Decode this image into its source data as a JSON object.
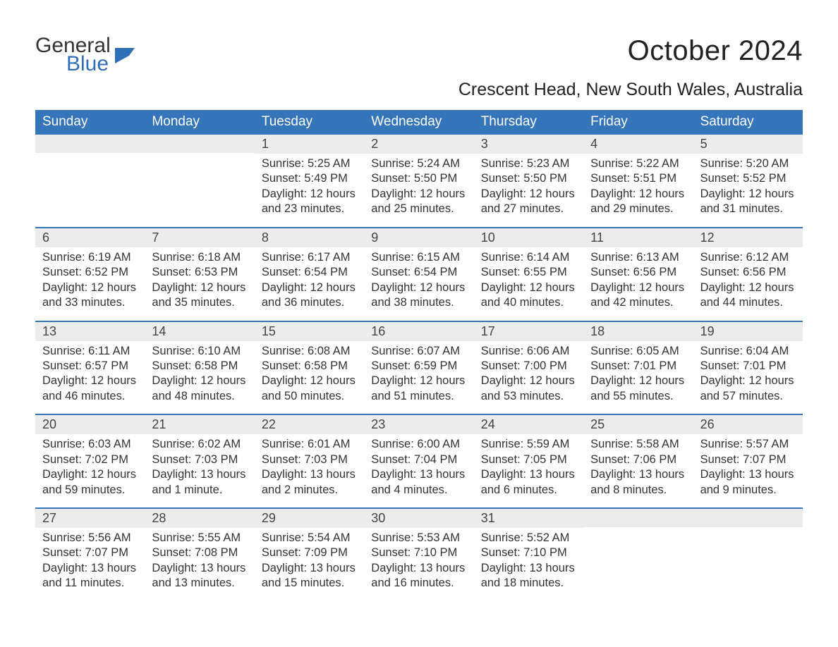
{
  "logo": {
    "word1": "General",
    "word2": "Blue",
    "accent_color": "#2e6fb7"
  },
  "title": "October 2024",
  "location": "Crescent Head, New South Wales, Australia",
  "colors": {
    "header_bg": "#3575b9",
    "header_text": "#ffffff",
    "daynum_bg": "#ececec",
    "rule": "#3575b9",
    "body_text": "#333333"
  },
  "fonts": {
    "title_size": 40,
    "location_size": 25,
    "dow_size": 19,
    "daynum_size": 18,
    "body_size": 16.5
  },
  "days_of_week": [
    "Sunday",
    "Monday",
    "Tuesday",
    "Wednesday",
    "Thursday",
    "Friday",
    "Saturday"
  ],
  "weeks": [
    [
      null,
      null,
      {
        "n": "1",
        "sunrise": "5:25 AM",
        "sunset": "5:49 PM",
        "daylight": "12 hours and 23 minutes."
      },
      {
        "n": "2",
        "sunrise": "5:24 AM",
        "sunset": "5:50 PM",
        "daylight": "12 hours and 25 minutes."
      },
      {
        "n": "3",
        "sunrise": "5:23 AM",
        "sunset": "5:50 PM",
        "daylight": "12 hours and 27 minutes."
      },
      {
        "n": "4",
        "sunrise": "5:22 AM",
        "sunset": "5:51 PM",
        "daylight": "12 hours and 29 minutes."
      },
      {
        "n": "5",
        "sunrise": "5:20 AM",
        "sunset": "5:52 PM",
        "daylight": "12 hours and 31 minutes."
      }
    ],
    [
      {
        "n": "6",
        "sunrise": "6:19 AM",
        "sunset": "6:52 PM",
        "daylight": "12 hours and 33 minutes."
      },
      {
        "n": "7",
        "sunrise": "6:18 AM",
        "sunset": "6:53 PM",
        "daylight": "12 hours and 35 minutes."
      },
      {
        "n": "8",
        "sunrise": "6:17 AM",
        "sunset": "6:54 PM",
        "daylight": "12 hours and 36 minutes."
      },
      {
        "n": "9",
        "sunrise": "6:15 AM",
        "sunset": "6:54 PM",
        "daylight": "12 hours and 38 minutes."
      },
      {
        "n": "10",
        "sunrise": "6:14 AM",
        "sunset": "6:55 PM",
        "daylight": "12 hours and 40 minutes."
      },
      {
        "n": "11",
        "sunrise": "6:13 AM",
        "sunset": "6:56 PM",
        "daylight": "12 hours and 42 minutes."
      },
      {
        "n": "12",
        "sunrise": "6:12 AM",
        "sunset": "6:56 PM",
        "daylight": "12 hours and 44 minutes."
      }
    ],
    [
      {
        "n": "13",
        "sunrise": "6:11 AM",
        "sunset": "6:57 PM",
        "daylight": "12 hours and 46 minutes."
      },
      {
        "n": "14",
        "sunrise": "6:10 AM",
        "sunset": "6:58 PM",
        "daylight": "12 hours and 48 minutes."
      },
      {
        "n": "15",
        "sunrise": "6:08 AM",
        "sunset": "6:58 PM",
        "daylight": "12 hours and 50 minutes."
      },
      {
        "n": "16",
        "sunrise": "6:07 AM",
        "sunset": "6:59 PM",
        "daylight": "12 hours and 51 minutes."
      },
      {
        "n": "17",
        "sunrise": "6:06 AM",
        "sunset": "7:00 PM",
        "daylight": "12 hours and 53 minutes."
      },
      {
        "n": "18",
        "sunrise": "6:05 AM",
        "sunset": "7:01 PM",
        "daylight": "12 hours and 55 minutes."
      },
      {
        "n": "19",
        "sunrise": "6:04 AM",
        "sunset": "7:01 PM",
        "daylight": "12 hours and 57 minutes."
      }
    ],
    [
      {
        "n": "20",
        "sunrise": "6:03 AM",
        "sunset": "7:02 PM",
        "daylight": "12 hours and 59 minutes."
      },
      {
        "n": "21",
        "sunrise": "6:02 AM",
        "sunset": "7:03 PM",
        "daylight": "13 hours and 1 minute."
      },
      {
        "n": "22",
        "sunrise": "6:01 AM",
        "sunset": "7:03 PM",
        "daylight": "13 hours and 2 minutes."
      },
      {
        "n": "23",
        "sunrise": "6:00 AM",
        "sunset": "7:04 PM",
        "daylight": "13 hours and 4 minutes."
      },
      {
        "n": "24",
        "sunrise": "5:59 AM",
        "sunset": "7:05 PM",
        "daylight": "13 hours and 6 minutes."
      },
      {
        "n": "25",
        "sunrise": "5:58 AM",
        "sunset": "7:06 PM",
        "daylight": "13 hours and 8 minutes."
      },
      {
        "n": "26",
        "sunrise": "5:57 AM",
        "sunset": "7:07 PM",
        "daylight": "13 hours and 9 minutes."
      }
    ],
    [
      {
        "n": "27",
        "sunrise": "5:56 AM",
        "sunset": "7:07 PM",
        "daylight": "13 hours and 11 minutes."
      },
      {
        "n": "28",
        "sunrise": "5:55 AM",
        "sunset": "7:08 PM",
        "daylight": "13 hours and 13 minutes."
      },
      {
        "n": "29",
        "sunrise": "5:54 AM",
        "sunset": "7:09 PM",
        "daylight": "13 hours and 15 minutes."
      },
      {
        "n": "30",
        "sunrise": "5:53 AM",
        "sunset": "7:10 PM",
        "daylight": "13 hours and 16 minutes."
      },
      {
        "n": "31",
        "sunrise": "5:52 AM",
        "sunset": "7:10 PM",
        "daylight": "13 hours and 18 minutes."
      },
      null,
      null
    ]
  ],
  "labels": {
    "sunrise": "Sunrise:",
    "sunset": "Sunset:",
    "daylight": "Daylight:"
  }
}
